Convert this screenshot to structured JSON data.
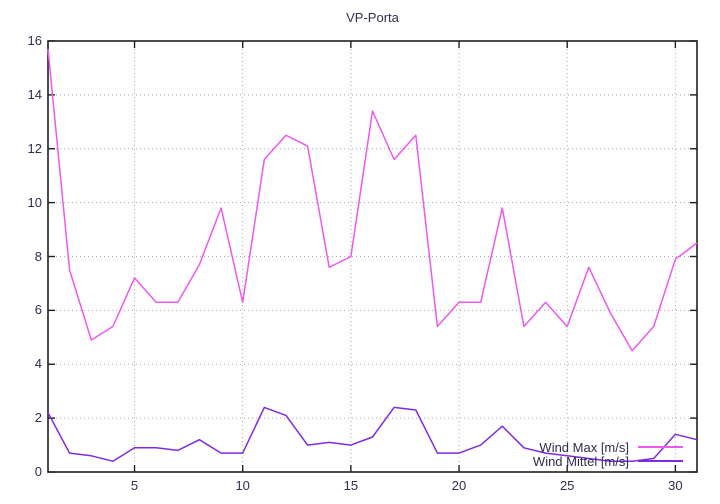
{
  "chart": {
    "title": "VP-Porta",
    "colors": {
      "wind_max_line": "#ee58ee",
      "wind_mittel_line": "#7d2ce2",
      "axis_text": "#2e2e52",
      "border": "#1f1f1f",
      "grid": "#a8a8a8",
      "background": "#ffffff"
    },
    "legend": {
      "items": [
        "Wind Max [m/s]",
        "Wind Mittel [m/s]"
      ]
    }
  },
  "chart_data": {
    "type": "line",
    "title": "VP-Porta",
    "xlabel": "",
    "ylabel": "",
    "xlim": [
      1,
      31
    ],
    "ylim": [
      0,
      16
    ],
    "x_ticks": [
      5,
      10,
      15,
      20,
      25,
      30
    ],
    "y_ticks": [
      0,
      2,
      4,
      6,
      8,
      10,
      12,
      14,
      16
    ],
    "grid": true,
    "legend_position": "inside-bottom-right",
    "x": [
      1,
      2,
      3,
      4,
      5,
      6,
      7,
      8,
      9,
      10,
      11,
      12,
      13,
      14,
      15,
      16,
      17,
      18,
      19,
      20,
      21,
      22,
      23,
      24,
      25,
      26,
      27,
      28,
      29,
      30,
      31
    ],
    "series": [
      {
        "name": "Wind Max [m/s]",
        "color": "#ee58ee",
        "values": [
          15.7,
          7.5,
          4.9,
          5.4,
          7.2,
          6.3,
          6.3,
          7.7,
          9.8,
          6.3,
          11.6,
          12.5,
          12.1,
          7.6,
          8.0,
          13.4,
          11.6,
          12.5,
          5.4,
          6.3,
          6.3,
          9.8,
          5.4,
          6.3,
          5.4,
          7.6,
          5.9,
          4.5,
          5.4,
          7.9,
          8.5
        ]
      },
      {
        "name": "Wind Mittel [m/s]",
        "color": "#7d2ce2",
        "values": [
          2.2,
          0.7,
          0.6,
          0.4,
          0.9,
          0.9,
          0.8,
          1.2,
          0.7,
          0.7,
          2.4,
          2.1,
          1.0,
          1.1,
          1.0,
          1.3,
          2.4,
          2.3,
          0.7,
          0.7,
          1.0,
          1.7,
          0.9,
          0.7,
          0.6,
          0.5,
          0.4,
          0.4,
          0.5,
          1.4,
          1.2
        ]
      }
    ]
  }
}
